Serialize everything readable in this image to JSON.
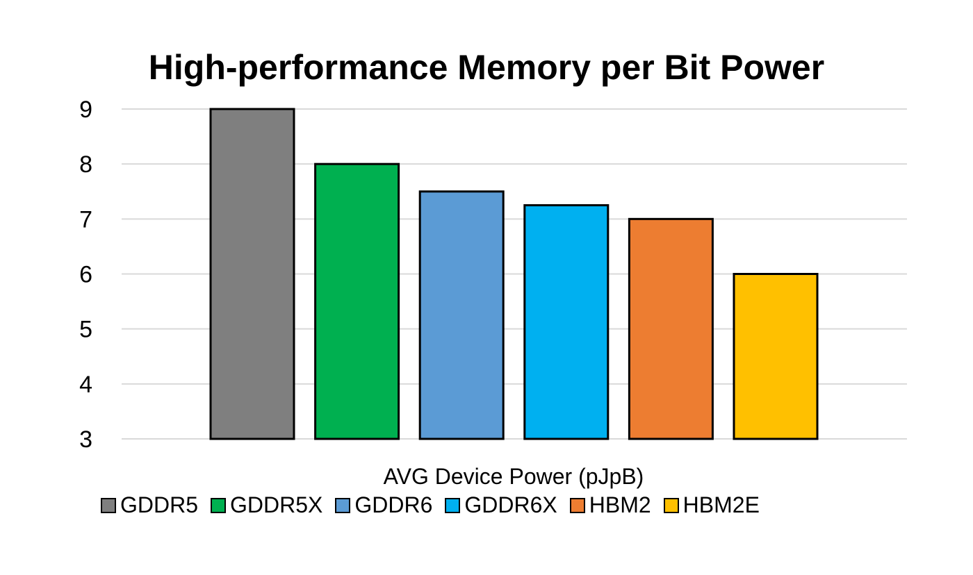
{
  "chart_data": {
    "type": "bar",
    "title": "High-performance Memory per Bit Power",
    "xlabel": "AVG Device Power (pJpB)",
    "ylabel": "",
    "ylim": [
      3,
      9
    ],
    "yticks": [
      9,
      8,
      7,
      6,
      5,
      4,
      3
    ],
    "grid": true,
    "legend_position": "bottom",
    "series": [
      {
        "name": "GDDR5",
        "value": 9,
        "color": "#7f7f7f"
      },
      {
        "name": "GDDR5X",
        "value": 8,
        "color": "#00b050"
      },
      {
        "name": "GDDR6",
        "value": 7.5,
        "color": "#5b9bd5"
      },
      {
        "name": "GDDR6X",
        "value": 7.25,
        "color": "#00b0f0"
      },
      {
        "name": "HBM2",
        "value": 7,
        "color": "#ed7d31"
      },
      {
        "name": "HBM2E",
        "value": 6,
        "color": "#ffc000"
      }
    ]
  }
}
